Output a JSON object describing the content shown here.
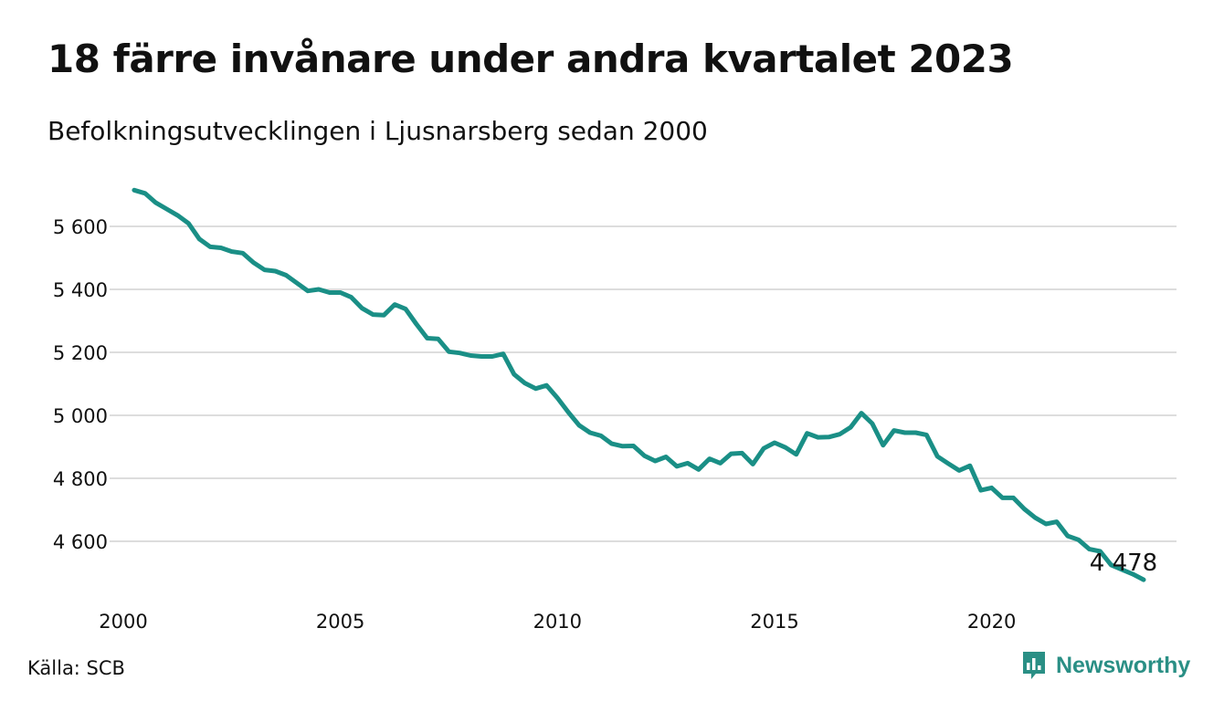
{
  "title": "18 färre invånare under andra kvartalet 2023",
  "subtitle": "Befolkningsutvecklingen i Ljusnarsberg sedan 2000",
  "source": "Källa: SCB",
  "logo": {
    "text": "Newsworthy",
    "icon": "newsworthy-chart-bubble-icon"
  },
  "colors": {
    "line": "#1a8f86",
    "grid": "#dddddd",
    "text": "#111111",
    "logo": "#2a8f85"
  },
  "chart_data": {
    "type": "line",
    "title": "18 färre invånare under andra kvartalet 2023",
    "subtitle": "Befolkningsutvecklingen i Ljusnarsberg sedan 2000",
    "xlabel": "",
    "ylabel": "",
    "xlim": [
      2000,
      2023.5
    ],
    "ylim": [
      4480,
      5730
    ],
    "grid": "horizontal",
    "legend": "none",
    "x_ticks": [
      {
        "value": 2000,
        "label": "2000"
      },
      {
        "value": 2005,
        "label": "2005"
      },
      {
        "value": 2010,
        "label": "2010"
      },
      {
        "value": 2015,
        "label": "2015"
      },
      {
        "value": 2020,
        "label": "2020"
      }
    ],
    "y_ticks": [
      {
        "value": 4600,
        "label": "4 600"
      },
      {
        "value": 4800,
        "label": "4 800"
      },
      {
        "value": 5000,
        "label": "5 000"
      },
      {
        "value": 5200,
        "label": "5 200"
      },
      {
        "value": 5400,
        "label": "5 400"
      },
      {
        "value": 5600,
        "label": "5 600"
      }
    ],
    "end_label": "4 478",
    "series": [
      {
        "x": [
          2000.25,
          2000.5,
          2000.75,
          2001.0,
          2001.25,
          2001.5,
          2001.75,
          2002.0,
          2002.25,
          2002.5,
          2002.75,
          2003.0,
          2003.25,
          2003.5,
          2003.75,
          2004.0,
          2004.25,
          2004.5,
          2004.75,
          2005.0,
          2005.25,
          2005.5,
          2005.75,
          2006.0,
          2006.25,
          2006.5,
          2006.75,
          2007.0,
          2007.25,
          2007.5,
          2007.75,
          2008.0,
          2008.25,
          2008.5,
          2008.75,
          2009.0,
          2009.25,
          2009.5,
          2009.75,
          2010.0,
          2010.25,
          2010.5,
          2010.75,
          2011.0,
          2011.25,
          2011.5,
          2011.75,
          2012.0,
          2012.25,
          2012.5,
          2012.75,
          2013.0,
          2013.25,
          2013.5,
          2013.75,
          2014.0,
          2014.25,
          2014.5,
          2014.75,
          2015.0,
          2015.25,
          2015.5,
          2015.75,
          2016.0,
          2016.25,
          2016.5,
          2016.75,
          2017.0,
          2017.25,
          2017.5,
          2017.75,
          2018.0,
          2018.25,
          2018.5,
          2018.75,
          2019.0,
          2019.25,
          2019.5,
          2019.75,
          2020.0,
          2020.25,
          2020.5,
          2020.75,
          2021.0,
          2021.25,
          2021.5,
          2021.75,
          2022.0,
          2022.25,
          2022.5,
          2022.75,
          2023.0,
          2023.25,
          2023.5
        ],
        "values": [
          5715,
          5705,
          5675,
          5655,
          5635,
          5610,
          5560,
          5535,
          5532,
          5520,
          5515,
          5485,
          5462,
          5458,
          5445,
          5420,
          5395,
          5400,
          5390,
          5390,
          5375,
          5340,
          5320,
          5318,
          5352,
          5338,
          5290,
          5245,
          5243,
          5202,
          5198,
          5190,
          5187,
          5187,
          5195,
          5130,
          5102,
          5085,
          5095,
          5055,
          5010,
          4968,
          4945,
          4935,
          4910,
          4902,
          4903,
          4872,
          4855,
          4868,
          4838,
          4848,
          4828,
          4862,
          4848,
          4878,
          4880,
          4845,
          4895,
          4913,
          4898,
          4876,
          4943,
          4930,
          4931,
          4940,
          4962,
          5007,
          4974,
          4905,
          4952,
          4945,
          4945,
          4938,
          4870,
          4847,
          4825,
          4840,
          4762,
          4770,
          4738,
          4738,
          4703,
          4675,
          4655,
          4662,
          4617,
          4605,
          4575,
          4568,
          4525,
          4510,
          4496,
          4478
        ]
      }
    ]
  }
}
